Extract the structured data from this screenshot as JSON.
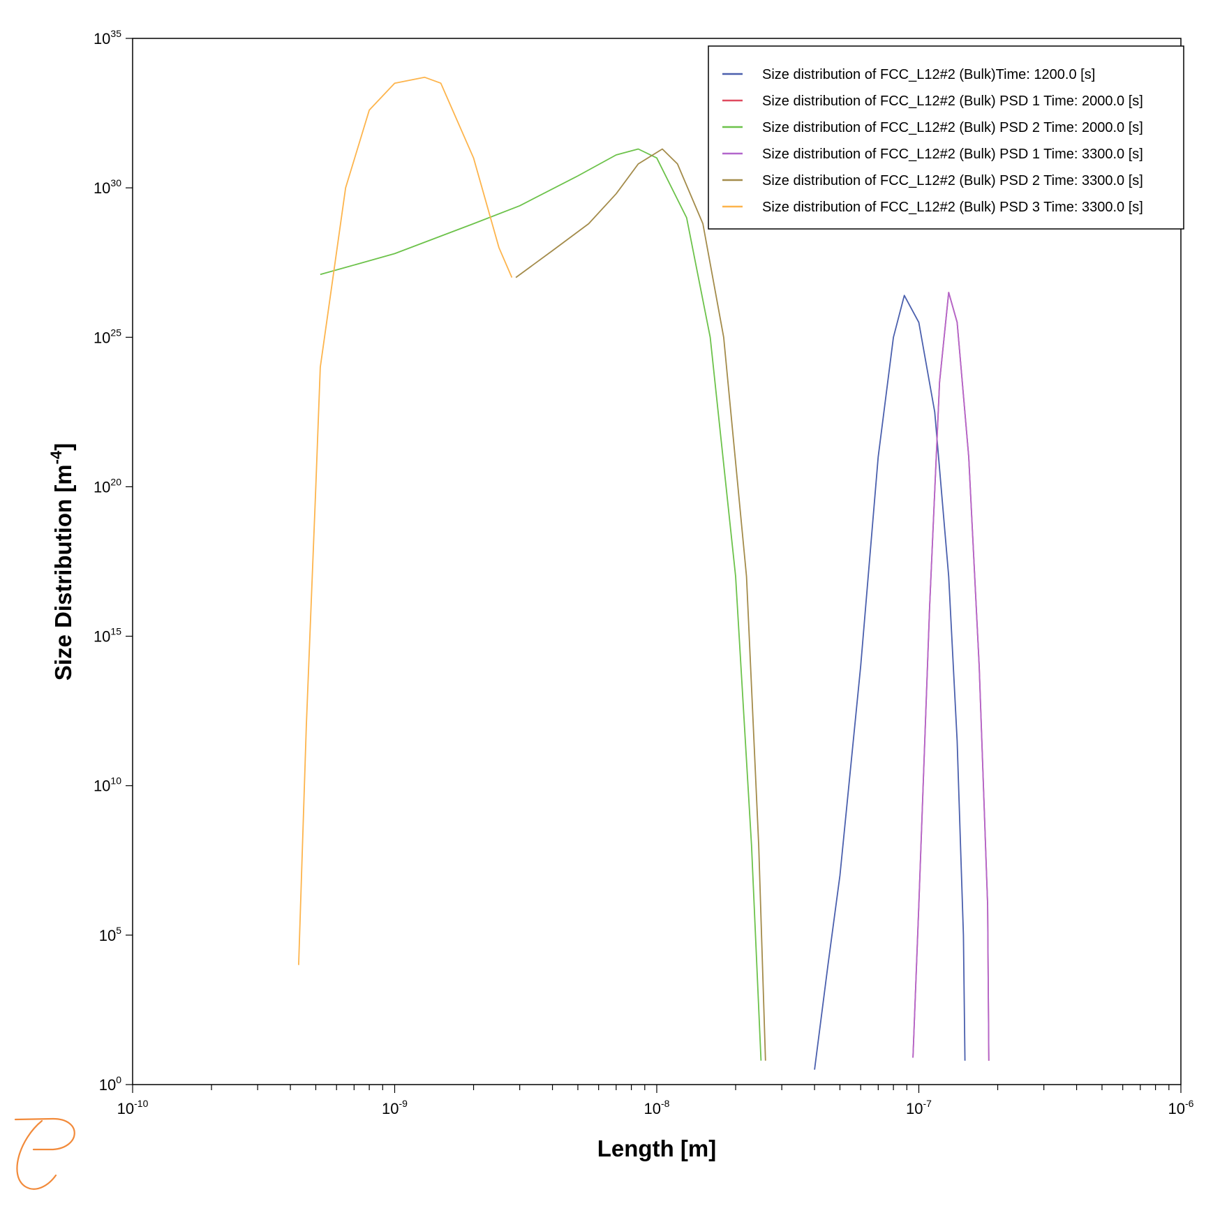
{
  "chart_data": {
    "type": "line",
    "title": "",
    "xlabel": "Length [m]",
    "ylabel_base": "Size Distribution [m",
    "ylabel_exp": "-4",
    "ylabel_close": "]",
    "x_scale": "log",
    "y_scale": "log",
    "xlim": [
      1e-10,
      1e-06
    ],
    "ylim": [
      1,
      1e+35
    ],
    "x_ticks": [
      {
        "base": "10",
        "exp": "-10"
      },
      {
        "base": "10",
        "exp": "-9"
      },
      {
        "base": "10",
        "exp": "-8"
      },
      {
        "base": "10",
        "exp": "-7"
      },
      {
        "base": "10",
        "exp": "-6"
      }
    ],
    "y_ticks": [
      {
        "base": "10",
        "exp": "0"
      },
      {
        "base": "10",
        "exp": "5"
      },
      {
        "base": "10",
        "exp": "10"
      },
      {
        "base": "10",
        "exp": "15"
      },
      {
        "base": "10",
        "exp": "20"
      },
      {
        "base": "10",
        "exp": "25"
      },
      {
        "base": "10",
        "exp": "30"
      },
      {
        "base": "10",
        "exp": "35"
      }
    ],
    "grid": false,
    "legend_position": "top-right",
    "series": [
      {
        "name": "Size distribution of FCC_L12#2 (Bulk)Time: 1200.0  [s]",
        "color": "#4a5fad",
        "points": [
          [
            4e-08,
            0.5
          ],
          [
            4.5e-08,
            4
          ],
          [
            5e-08,
            7
          ],
          [
            6e-08,
            14
          ],
          [
            7e-08,
            21
          ],
          [
            8e-08,
            25
          ],
          [
            8.8e-08,
            26.4
          ],
          [
            1e-07,
            25.5
          ],
          [
            1.15e-07,
            22.5
          ],
          [
            1.3e-07,
            17
          ],
          [
            1.4e-07,
            11.5
          ],
          [
            1.48e-07,
            5
          ],
          [
            1.5e-07,
            0.8
          ]
        ]
      },
      {
        "name": "Size distribution of FCC_L12#2 (Bulk) PSD 1 Time: 2000.0  [s]",
        "color": "#e04a5f",
        "points": [
          [
            9.5e-08,
            0.9
          ],
          [
            1e-07,
            6
          ],
          [
            1.1e-07,
            16
          ],
          [
            1.2e-07,
            23.5
          ],
          [
            1.3e-07,
            26.5
          ],
          [
            1.4e-07,
            25.5
          ],
          [
            1.55e-07,
            21
          ],
          [
            1.7e-07,
            14
          ],
          [
            1.83e-07,
            6
          ],
          [
            1.85e-07,
            0.8
          ]
        ]
      },
      {
        "name": "Size distribution of FCC_L12#2 (Bulk) PSD 2 Time: 2000.0  [s]",
        "color": "#6cc24a",
        "points": [
          [
            5.2e-10,
            27.1
          ],
          [
            1e-09,
            27.8
          ],
          [
            2e-09,
            28.8
          ],
          [
            3e-09,
            29.4
          ],
          [
            5e-09,
            30.4
          ],
          [
            7e-09,
            31.1
          ],
          [
            8.5e-09,
            31.3
          ],
          [
            1e-08,
            31.0
          ],
          [
            1.3e-08,
            29.0
          ],
          [
            1.6e-08,
            25.0
          ],
          [
            2e-08,
            17.0
          ],
          [
            2.3e-08,
            8.0
          ],
          [
            2.5e-08,
            0.8
          ]
        ]
      },
      {
        "name": "Size distribution of FCC_L12#2 (Bulk) PSD 1 Time: 3300.0  [s]",
        "color": "#b266cc",
        "points": [
          [
            9.5e-08,
            0.9
          ],
          [
            1e-07,
            6
          ],
          [
            1.1e-07,
            16
          ],
          [
            1.2e-07,
            23.5
          ],
          [
            1.3e-07,
            26.5
          ],
          [
            1.4e-07,
            25.5
          ],
          [
            1.55e-07,
            21
          ],
          [
            1.7e-07,
            14
          ],
          [
            1.83e-07,
            6
          ],
          [
            1.85e-07,
            0.8
          ]
        ]
      },
      {
        "name": "Size distribution of FCC_L12#2 (Bulk) PSD 2 Time: 3300.0  [s]",
        "color": "#a38b4a",
        "points": [
          [
            2.9e-09,
            27.0
          ],
          [
            4e-09,
            27.9
          ],
          [
            5.5e-09,
            28.8
          ],
          [
            7e-09,
            29.8
          ],
          [
            8.5e-09,
            30.8
          ],
          [
            1.05e-08,
            31.3
          ],
          [
            1.2e-08,
            30.8
          ],
          [
            1.5e-08,
            28.8
          ],
          [
            1.8e-08,
            25.0
          ],
          [
            2.2e-08,
            17.0
          ],
          [
            2.45e-08,
            8.0
          ],
          [
            2.6e-08,
            0.8
          ]
        ]
      },
      {
        "name": "Size distribution of FCC_L12#2 (Bulk) PSD 3 Time: 3300.0  [s]",
        "color": "#fdb44c",
        "points": [
          [
            4.3e-10,
            4.0
          ],
          [
            4.6e-10,
            12.0
          ],
          [
            5e-10,
            20.0
          ],
          [
            5.2e-10,
            24.0
          ],
          [
            5.5e-10,
            25.5
          ],
          [
            6.5e-10,
            30.0
          ],
          [
            8e-10,
            32.6
          ],
          [
            1e-09,
            33.5
          ],
          [
            1.3e-09,
            33.7
          ],
          [
            1.5e-09,
            33.5
          ],
          [
            2e-09,
            31.0
          ],
          [
            2.5e-09,
            28.0
          ],
          [
            2.8e-09,
            27.0
          ]
        ]
      }
    ]
  },
  "logo": {
    "name": "publisher-logo",
    "color": "#f28a3a"
  }
}
